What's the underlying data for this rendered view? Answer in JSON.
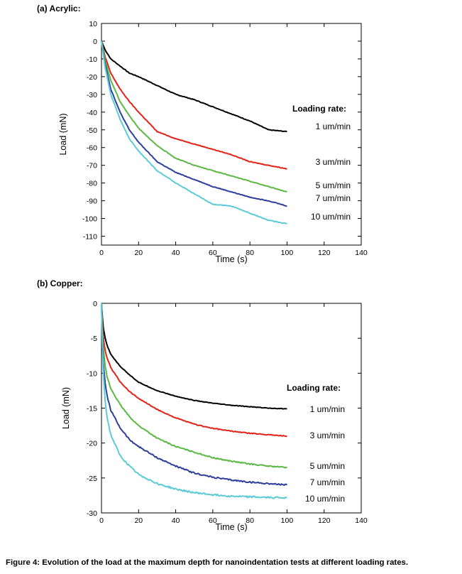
{
  "figure_caption": "Figure 4: Evolution of the load at the maximum depth for nanoindentation tests at different loading rates.",
  "chart_data": [
    {
      "type": "line",
      "panel_label": "(a)  Acrylic:",
      "xlabel": "Time (s)",
      "ylabel": "Load (mN)",
      "xlim": [
        0,
        140
      ],
      "ylim": [
        -115,
        10
      ],
      "xticks": [
        0,
        20,
        40,
        60,
        80,
        100,
        120,
        140
      ],
      "yticks": [
        10,
        0,
        -10,
        -20,
        -30,
        -40,
        -50,
        -60,
        -70,
        -80,
        -90,
        -100,
        -110
      ],
      "legend_title": "Loading rate:",
      "series": [
        {
          "name": "1 um/min",
          "color": "#000000",
          "x": [
            0,
            2,
            5,
            10,
            15,
            20,
            30,
            40,
            50,
            60,
            70,
            80,
            90,
            100
          ],
          "y": [
            0,
            -5,
            -10,
            -14,
            -18,
            -20,
            -25,
            -30,
            -33,
            -37,
            -41,
            -45,
            -50,
            -51
          ]
        },
        {
          "name": "3 um/min",
          "color": "#e2231a",
          "x": [
            0,
            2,
            5,
            10,
            15,
            20,
            30,
            40,
            50,
            60,
            70,
            80,
            90,
            100
          ],
          "y": [
            0,
            -9,
            -18,
            -27,
            -34,
            -40,
            -51,
            -55,
            -58,
            -61,
            -64,
            -68,
            -70,
            -72
          ]
        },
        {
          "name": "5 um/min",
          "color": "#5cb845",
          "x": [
            0,
            2,
            5,
            10,
            15,
            20,
            30,
            40,
            50,
            60,
            70,
            80,
            90,
            100
          ],
          "y": [
            0,
            -11,
            -22,
            -34,
            -42,
            -49,
            -59,
            -66,
            -70,
            -73,
            -76,
            -79,
            -82,
            -85
          ]
        },
        {
          "name": "7 um/min",
          "color": "#2e3f9b",
          "x": [
            0,
            2,
            5,
            10,
            15,
            20,
            30,
            40,
            50,
            60,
            70,
            80,
            90,
            100
          ],
          "y": [
            0,
            -13,
            -27,
            -40,
            -50,
            -57,
            -68,
            -74,
            -78,
            -82,
            -85,
            -88,
            -90,
            -93
          ]
        },
        {
          "name": "10 um/min",
          "color": "#5ccbd8",
          "x": [
            0,
            2,
            5,
            10,
            15,
            20,
            30,
            40,
            50,
            60,
            70,
            80,
            90,
            100
          ],
          "y": [
            0,
            -15,
            -30,
            -44,
            -55,
            -62,
            -73,
            -80,
            -86,
            -92,
            -93,
            -97,
            -101,
            -103
          ]
        }
      ]
    },
    {
      "type": "line",
      "panel_label": "(b)  Copper:",
      "xlabel": "Time (s)",
      "ylabel": "Load (mN)",
      "xlim": [
        0,
        140
      ],
      "ylim": [
        -30,
        0
      ],
      "xticks": [
        0,
        20,
        40,
        60,
        80,
        100,
        120,
        140
      ],
      "yticks": [
        0,
        -5,
        -10,
        -15,
        -20,
        -25,
        -30
      ],
      "legend_title": "Loading rate:",
      "series": [
        {
          "name": "1 um/min",
          "color": "#000000",
          "x": [
            0,
            0.5,
            1,
            2,
            3,
            5,
            10,
            15,
            20,
            30,
            40,
            50,
            60,
            70,
            80,
            90,
            100
          ],
          "y": [
            0,
            -2,
            -3.5,
            -5,
            -6,
            -7.3,
            -9,
            -10.2,
            -11.3,
            -12.5,
            -13.3,
            -13.9,
            -14.3,
            -14.6,
            -14.8,
            -15,
            -15.1
          ]
        },
        {
          "name": "3 um/min",
          "color": "#e2231a",
          "x": [
            0,
            0.5,
            1,
            2,
            3,
            5,
            10,
            15,
            20,
            30,
            40,
            50,
            60,
            70,
            80,
            90,
            100
          ],
          "y": [
            0,
            -3,
            -5,
            -6.8,
            -7.8,
            -9.2,
            -11.2,
            -12.6,
            -13.6,
            -15.2,
            -16.4,
            -17.3,
            -17.9,
            -18.3,
            -18.6,
            -18.8,
            -19
          ]
        },
        {
          "name": "5 um/min",
          "color": "#5cb845",
          "x": [
            0,
            0.5,
            1,
            2,
            3,
            5,
            10,
            15,
            20,
            30,
            40,
            50,
            60,
            70,
            80,
            90,
            100
          ],
          "y": [
            0,
            -4,
            -6.5,
            -9,
            -10.5,
            -12.2,
            -14.5,
            -16.2,
            -17.5,
            -19.3,
            -20.5,
            -21.3,
            -22.1,
            -22.6,
            -23,
            -23.3,
            -23.5
          ]
        },
        {
          "name": "7 um/min",
          "color": "#2e3f9b",
          "x": [
            0,
            0.5,
            1,
            2,
            3,
            5,
            10,
            15,
            20,
            30,
            40,
            50,
            60,
            70,
            80,
            90,
            100
          ],
          "y": [
            0,
            -5,
            -8.5,
            -11.5,
            -13.2,
            -15.3,
            -17.8,
            -19.5,
            -20.5,
            -22.1,
            -23.3,
            -24.3,
            -24.9,
            -25.3,
            -25.6,
            -25.8,
            -26
          ]
        },
        {
          "name": "10 um/min",
          "color": "#5ccbd8",
          "x": [
            0,
            0.5,
            1,
            2,
            3,
            5,
            10,
            15,
            20,
            30,
            40,
            50,
            60,
            70,
            80,
            90,
            100
          ],
          "y": [
            0,
            -6,
            -10,
            -14,
            -16.3,
            -18.8,
            -21.8,
            -23.3,
            -24.5,
            -25.8,
            -26.6,
            -27.1,
            -27.4,
            -27.6,
            -27.7,
            -27.8,
            -27.8
          ]
        }
      ]
    }
  ]
}
